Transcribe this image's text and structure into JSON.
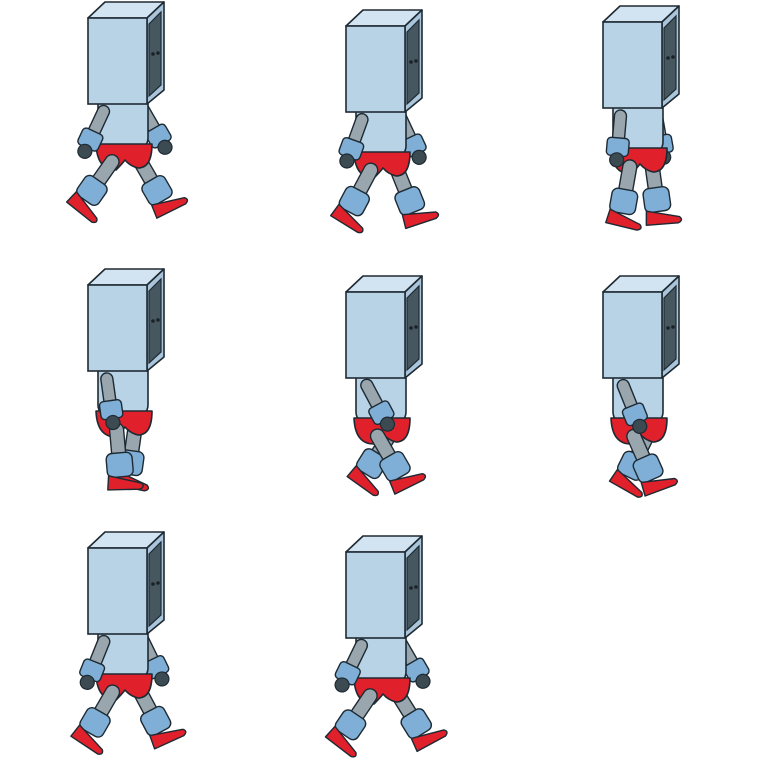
{
  "sprite_sheet": {
    "character": "box-head-robot",
    "animation": "walk-cycle",
    "frame_count": 8,
    "columns": 3,
    "rows": 3,
    "colors": {
      "background": "#ffffff",
      "outline": "#1e2a33",
      "head_front": "#b8d3e6",
      "head_top": "#d2e4f1",
      "screen": "#47575f",
      "eyes": "#1a2227",
      "torso": "#b8d3e6",
      "upper_arm_grey": "#9aa6ae",
      "limb_blue": "#7fafd6",
      "hand_dark": "#3c4a52",
      "shorts_red": "#e0202a",
      "shoe_red": "#e0202a"
    },
    "frames": [
      {
        "id": "frame-1",
        "pose": "contact-right"
      },
      {
        "id": "frame-2",
        "pose": "down-right"
      },
      {
        "id": "frame-3",
        "pose": "pass-right"
      },
      {
        "id": "frame-4",
        "pose": "up-right"
      },
      {
        "id": "frame-5",
        "pose": "contact-left"
      },
      {
        "id": "frame-6",
        "pose": "down-left"
      },
      {
        "id": "frame-7",
        "pose": "pass-left"
      },
      {
        "id": "frame-8",
        "pose": "up-left"
      }
    ]
  }
}
